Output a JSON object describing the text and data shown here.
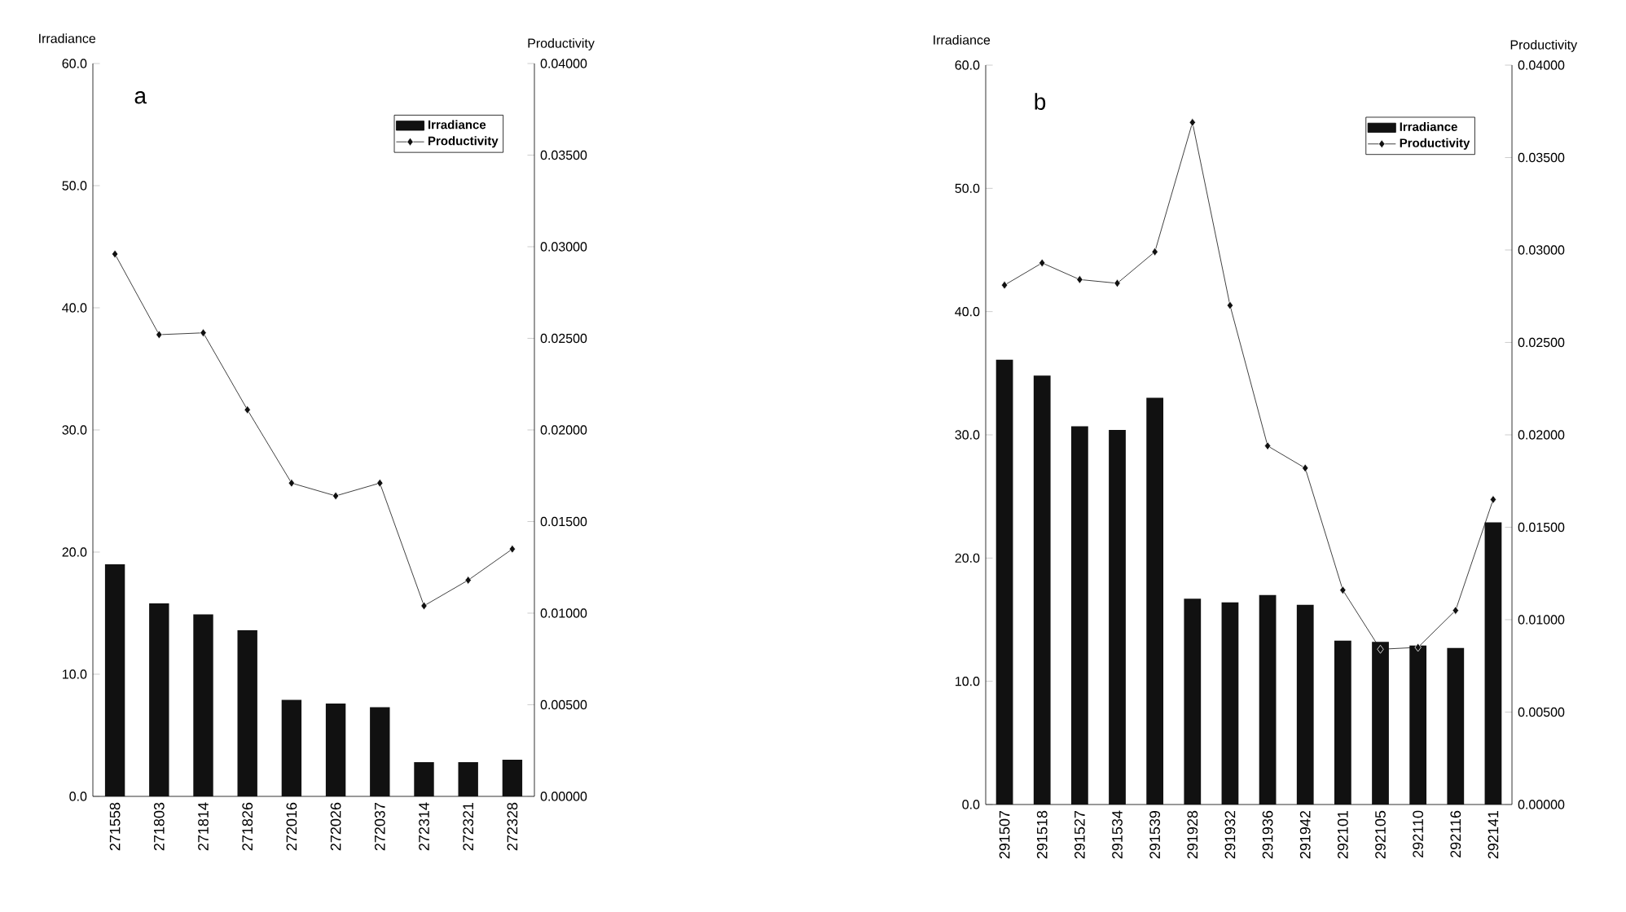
{
  "chart_data": [
    {
      "type": "bar",
      "title": "a",
      "ylabel": "Irradiance",
      "y2label": "Productivity",
      "categories": [
        "271558",
        "271803",
        "271814",
        "271826",
        "272016",
        "272026",
        "272037",
        "272314",
        "272321",
        "272328"
      ],
      "series": [
        {
          "name": "Irradiance",
          "color": "#111111",
          "values": [
            19.0,
            15.8,
            14.9,
            13.6,
            7.9,
            7.6,
            7.3,
            2.8,
            2.8,
            3.0
          ]
        },
        {
          "name": "Productivity",
          "type": "line",
          "axis": "y2",
          "color": "#111111",
          "values": [
            0.0296,
            0.0252,
            0.0253,
            0.0211,
            0.0171,
            0.0164,
            0.0171,
            0.0104,
            0.0118,
            0.0135
          ]
        }
      ],
      "ylim": [
        0,
        60
      ],
      "yticks": [
        {
          "value": 0,
          "label": "0.0"
        },
        {
          "value": 10,
          "label": "10.0"
        },
        {
          "value": 20,
          "label": "20.0"
        },
        {
          "value": 30,
          "label": "30.0"
        },
        {
          "value": 40,
          "label": "40.0"
        },
        {
          "value": 50,
          "label": "50.0"
        },
        {
          "value": 60,
          "label": "60.0"
        }
      ],
      "y2lim": [
        0,
        0.04
      ],
      "y2ticks": [
        {
          "value": 0,
          "label": "0.00000"
        },
        {
          "value": 0.005,
          "label": "0.00500"
        },
        {
          "value": 0.01,
          "label": "0.01000"
        },
        {
          "value": 0.015,
          "label": "0.01500"
        },
        {
          "value": 0.02,
          "label": "0.02000"
        },
        {
          "value": 0.025,
          "label": "0.02500"
        },
        {
          "value": 0.03,
          "label": "0.03000"
        },
        {
          "value": 0.035,
          "label": "0.03500"
        },
        {
          "value": 0.04,
          "label": "0.04000"
        }
      ],
      "legend": "top right",
      "marker": "diamond"
    },
    {
      "type": "bar",
      "title": "b",
      "ylabel": "Irradiance",
      "y2label": "Productivity",
      "categories": [
        "291507",
        "291518",
        "291527",
        "291534",
        "291539",
        "291928",
        "291932",
        "291936",
        "291942",
        "292101",
        "292105",
        "292110",
        "292116",
        "292141"
      ],
      "series": [
        {
          "name": "Irradiance",
          "color": "#111111",
          "values": [
            36.1,
            34.8,
            30.7,
            30.4,
            33.0,
            16.7,
            16.4,
            17.0,
            16.2,
            13.3,
            13.2,
            12.9,
            12.7,
            22.9
          ]
        },
        {
          "name": "Productivity",
          "type": "line",
          "axis": "y2",
          "color": "#111111",
          "values": [
            0.0281,
            0.0293,
            0.0284,
            0.0282,
            0.0299,
            0.0369,
            0.027,
            0.0194,
            0.0182,
            0.0116,
            0.0084,
            0.0085,
            0.0105,
            0.0165
          ]
        }
      ],
      "ylim": [
        0,
        60
      ],
      "yticks": [
        {
          "value": 0,
          "label": "0.0"
        },
        {
          "value": 10,
          "label": "10.0"
        },
        {
          "value": 20,
          "label": "20.0"
        },
        {
          "value": 30,
          "label": "30.0"
        },
        {
          "value": 40,
          "label": "40.0"
        },
        {
          "value": 50,
          "label": "50.0"
        },
        {
          "value": 60,
          "label": "60.0"
        }
      ],
      "y2lim": [
        0,
        0.04
      ],
      "y2ticks": [
        {
          "value": 0,
          "label": "0.00000"
        },
        {
          "value": 0.005,
          "label": "0.00500"
        },
        {
          "value": 0.01,
          "label": "0.01000"
        },
        {
          "value": 0.015,
          "label": "0.01500"
        },
        {
          "value": 0.02,
          "label": "0.02000"
        },
        {
          "value": 0.025,
          "label": "0.02500"
        },
        {
          "value": 0.03,
          "label": "0.03000"
        },
        {
          "value": 0.035,
          "label": "0.03500"
        },
        {
          "value": 0.04,
          "label": "0.04000"
        }
      ],
      "legend": "top right",
      "marker": "diamond"
    }
  ]
}
